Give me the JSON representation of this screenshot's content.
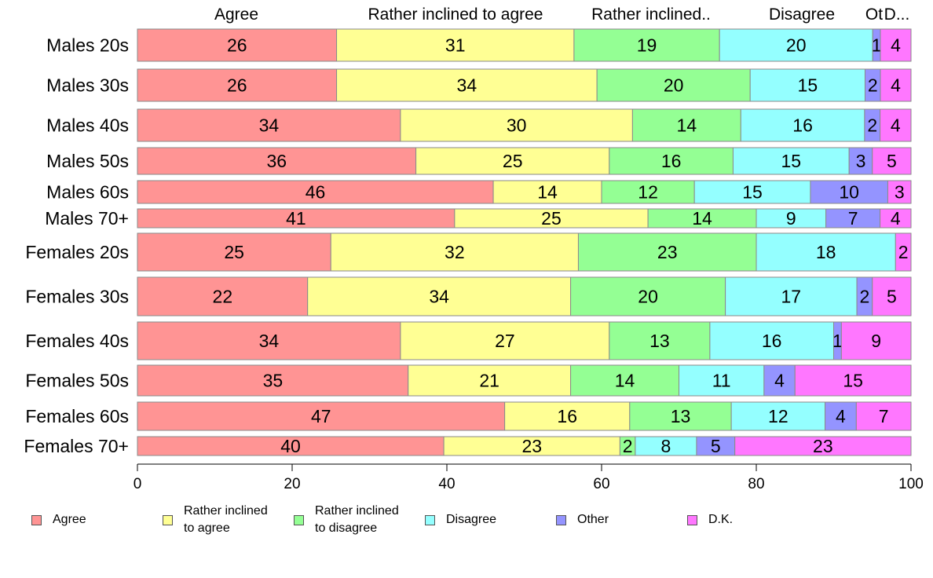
{
  "chart_data": {
    "type": "bar",
    "orientation": "horizontal",
    "stacked": true,
    "title": "",
    "xlabel": "",
    "ylabel": "",
    "xlim": [
      0,
      100
    ],
    "x_ticks": [
      "0",
      "20",
      "40",
      "60",
      "80",
      "100"
    ],
    "categories": [
      "Males 20s",
      "Males 30s",
      "Males 40s",
      "Males 50s",
      "Males 60s",
      "Males 70+",
      "Females 20s",
      "Females 30s",
      "Females 40s",
      "Females 50s",
      "Females 60s",
      "Females 70+"
    ],
    "column_headers": [
      "Agree",
      "Rather inclined to agree",
      "Rather inclined..",
      "Disagree",
      "Ot",
      "D..."
    ],
    "series": [
      {
        "name": "Agree",
        "legend_label": "Agree",
        "color": "#ff9494",
        "values": [
          26,
          26,
          34,
          36,
          46,
          41,
          25,
          22,
          34,
          35,
          47,
          40
        ]
      },
      {
        "name": "Rather inclined to agree",
        "legend_label": "Rather inclined\nto agree",
        "color": "#ffff94",
        "values": [
          31,
          34,
          30,
          25,
          14,
          25,
          32,
          34,
          27,
          21,
          16,
          23
        ]
      },
      {
        "name": "Rather inclined to disagree",
        "legend_label": "Rather inclined\nto disagree",
        "color": "#94ff94",
        "values": [
          19,
          20,
          14,
          16,
          12,
          14,
          23,
          20,
          13,
          14,
          13,
          2
        ]
      },
      {
        "name": "Disagree",
        "legend_label": "Disagree",
        "color": "#94ffff",
        "values": [
          20,
          15,
          16,
          15,
          15,
          9,
          18,
          17,
          16,
          11,
          12,
          8
        ]
      },
      {
        "name": "Other",
        "legend_label": "Other",
        "color": "#9494ff",
        "values": [
          1,
          2,
          2,
          3,
          10,
          7,
          0,
          2,
          1,
          4,
          4,
          5
        ]
      },
      {
        "name": "D.K.",
        "legend_label": "D.K.",
        "color": "#ff77ff",
        "values": [
          4,
          4,
          4,
          5,
          3,
          4,
          2,
          5,
          9,
          15,
          7,
          23
        ]
      }
    ],
    "grid": false,
    "legend_position": "bottom"
  }
}
